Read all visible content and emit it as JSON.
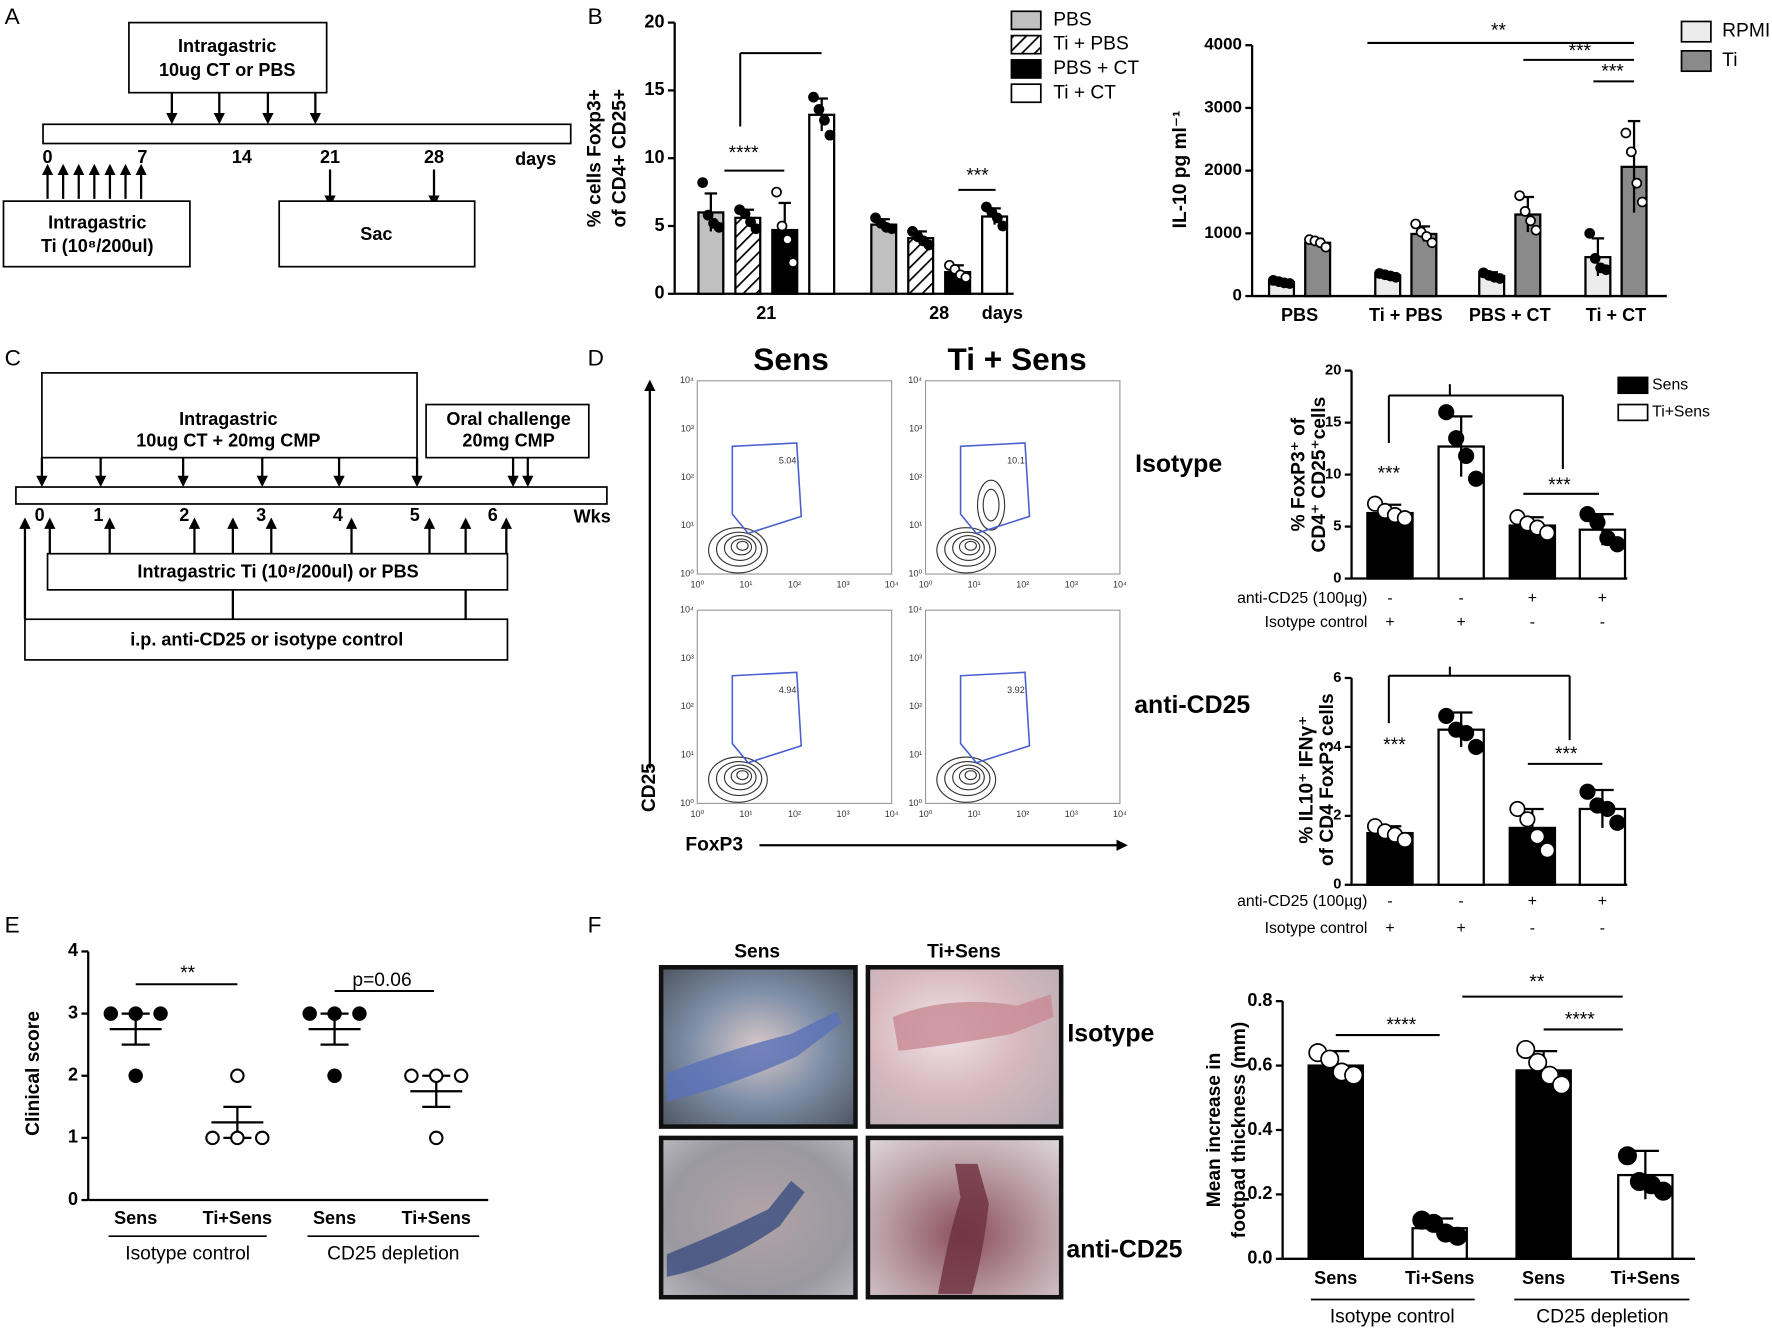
{
  "panel_labels": [
    "A",
    "B",
    "C",
    "D",
    "E",
    "F"
  ],
  "diagrams": {
    "A": {
      "top_box": [
        "Intragastric",
        "10ug CT or PBS"
      ],
      "ticks": [
        "0",
        "7",
        "14",
        "21",
        "28"
      ],
      "unit": "days",
      "bottom_left": [
        "Intragastric",
        "Ti (10⁸/200ul)"
      ],
      "bottom_right": "Sac"
    },
    "C": {
      "box1": [
        "Intragastric",
        "10ug CT + 20mg CMP"
      ],
      "box2": [
        "Oral challenge",
        "20mg CMP"
      ],
      "ticks": [
        "0",
        "1",
        "2",
        "3",
        "4",
        "5",
        "6"
      ],
      "unit": "Wks",
      "box3": "Intragastric Ti (10⁸/200ul) or PBS",
      "box4": "i.p. anti-CD25 or isotype control"
    },
    "D": {
      "columns": [
        "Sens",
        "Ti + Sens"
      ],
      "rows": [
        "Isotype",
        "anti-CD25"
      ],
      "gates": [
        "5.04",
        "10.1",
        "4.94",
        "3.92"
      ],
      "axis_ticks": [
        "10⁰",
        "10¹",
        "10²",
        "10³",
        "10⁴"
      ],
      "ylabel": "CD25",
      "xlabel": "FoxP3"
    },
    "F": {
      "columns": [
        "Sens",
        "Ti+Sens"
      ],
      "rows": [
        "Isotype",
        "anti-CD25"
      ]
    }
  },
  "chart_data": [
    {
      "type": "bar",
      "ylabel": [
        "% cells Foxp3+",
        "of CD4+ CD25+"
      ],
      "categories": [
        "21",
        "28"
      ],
      "xlabel": "days",
      "ylim": [
        0,
        20
      ],
      "yticks": [
        0,
        5,
        10,
        15,
        20
      ],
      "series": [
        {
          "name": "PBS",
          "color": "#c0c0c0",
          "values": [
            6.0,
            5.1
          ],
          "errors": [
            1.4,
            0.4
          ],
          "points": [
            [
              8.2,
              5.8,
              5.2,
              4.9
            ],
            [
              5.6,
              5.2,
              4.9,
              4.8
            ]
          ]
        },
        {
          "name": "Ti + PBS",
          "color": "#ffffff",
          "hatch": true,
          "values": [
            5.6,
            4.1
          ],
          "errors": [
            0.6,
            0.5
          ],
          "points": [
            [
              6.2,
              5.9,
              5.3,
              4.8
            ],
            [
              4.6,
              4.2,
              3.9,
              3.6
            ]
          ]
        },
        {
          "name": "PBS + CT",
          "color": "#000000",
          "values": [
            4.7,
            1.6
          ],
          "errors": [
            2.0,
            0.5
          ],
          "points": [
            [
              7.5,
              5.0,
              4.0,
              2.3
            ],
            [
              2.1,
              1.8,
              1.4,
              1.2
            ]
          ]
        },
        {
          "name": "Ti + CT",
          "color": "#ffffff",
          "values": [
            13.2,
            5.7
          ],
          "errors": [
            1.2,
            0.6
          ],
          "points": [
            [
              14.5,
              13.6,
              12.8,
              11.7
            ],
            [
              6.4,
              6.0,
              5.6,
              5.0
            ]
          ]
        }
      ],
      "annotations": [
        "****",
        "***"
      ]
    },
    {
      "type": "bar",
      "ylabel": "IL-10 pg ml⁻¹",
      "categories": [
        "PBS",
        "Ti + PBS",
        "PBS + CT",
        "Ti + CT"
      ],
      "ylim": [
        0,
        4000
      ],
      "yticks": [
        0,
        1000,
        2000,
        3000,
        4000
      ],
      "series": [
        {
          "name": "RPMI",
          "color": "#ececec",
          "values": [
            220,
            330,
            320,
            620
          ],
          "errors": [
            30,
            30,
            60,
            300
          ],
          "points": [
            [
              250,
              230,
              210,
              200
            ],
            [
              360,
              340,
              320,
              300
            ],
            [
              370,
              330,
              300,
              280
            ],
            [
              1000,
              600,
              450,
              420
            ]
          ]
        },
        {
          "name": "Ti",
          "color": "#8a8a8a",
          "values": [
            850,
            990,
            1300,
            2060
          ],
          "errors": [
            60,
            120,
            280,
            730
          ],
          "points": [
            [
              900,
              880,
              850,
              780
            ],
            [
              1150,
              1020,
              950,
              850
            ],
            [
              1600,
              1350,
              1200,
              1050
            ],
            [
              2600,
              2300,
              1800,
              1500
            ]
          ]
        }
      ],
      "annotations": [
        "**",
        "***",
        "***"
      ]
    },
    {
      "type": "bar",
      "ylabel": [
        "% FoxP3⁺ of",
        "CD4⁺ CD25⁺cells"
      ],
      "ylim": [
        0,
        20
      ],
      "yticks": [
        0,
        5,
        10,
        15,
        20
      ],
      "values": [
        6.3,
        12.7,
        5.1,
        4.7
      ],
      "errors": [
        0.8,
        2.9,
        0.8,
        1.5
      ],
      "colors": [
        "#000000",
        "#ffffff",
        "#000000",
        "#ffffff"
      ],
      "points": [
        [
          7.2,
          6.5,
          6.1,
          5.8
        ],
        [
          16.0,
          13.5,
          11.8,
          9.6
        ],
        [
          5.9,
          5.3,
          4.9,
          4.4
        ],
        [
          6.2,
          5.4,
          3.9,
          3.3
        ]
      ],
      "legend_items": [
        {
          "name": "Sens",
          "color": "#000000"
        },
        {
          "name": "Ti+Sens",
          "color": "#ffffff"
        }
      ],
      "conditions": [
        {
          "label": "anti-CD25 (100µg)",
          "values": [
            "-",
            "-",
            "+",
            "+"
          ]
        },
        {
          "label": "Isotype control",
          "values": [
            "+",
            "+",
            "-",
            "-"
          ]
        }
      ],
      "annotations": [
        "***",
        "***"
      ]
    },
    {
      "type": "bar",
      "ylabel": [
        "% IL10⁺ IFNγ⁺",
        "of CD4 FoxP3 cells"
      ],
      "ylim": [
        0,
        6
      ],
      "yticks": [
        0,
        2,
        4,
        6
      ],
      "values": [
        1.5,
        4.5,
        1.65,
        2.2
      ],
      "errors": [
        0.2,
        0.5,
        0.55,
        0.55
      ],
      "colors": [
        "#000000",
        "#ffffff",
        "#000000",
        "#ffffff"
      ],
      "points": [
        [
          1.7,
          1.55,
          1.45,
          1.3
        ],
        [
          4.9,
          4.5,
          4.4,
          4.0
        ],
        [
          2.2,
          1.9,
          1.4,
          1.0
        ],
        [
          2.7,
          2.3,
          2.2,
          1.8
        ]
      ],
      "conditions": [
        {
          "label": "anti-CD25 (100µg)",
          "values": [
            "-",
            "-",
            "+",
            "+"
          ]
        },
        {
          "label": "Isotype control",
          "values": [
            "+",
            "+",
            "-",
            "-"
          ]
        }
      ],
      "annotations": [
        "***",
        "***"
      ]
    },
    {
      "type": "dot",
      "ylabel": "Clinical score",
      "categories": [
        "Sens",
        "Ti+Sens",
        "Sens",
        "Ti+Sens"
      ],
      "groups": [
        "Isotype control",
        "CD25 depletion"
      ],
      "ylim": [
        0,
        4
      ],
      "yticks": [
        0,
        1,
        2,
        3,
        4
      ],
      "values": [
        2.75,
        1.25,
        2.75,
        1.75
      ],
      "errors": [
        0.25,
        0.25,
        0.25,
        0.25
      ],
      "markers": [
        "filled",
        "open",
        "filled",
        "open"
      ],
      "points": [
        [
          3,
          3,
          3,
          2
        ],
        [
          2,
          1,
          1,
          1
        ],
        [
          3,
          3,
          3,
          2
        ],
        [
          2,
          2,
          2,
          1
        ]
      ],
      "annotations": [
        "**",
        "p=0.06"
      ]
    },
    {
      "type": "bar",
      "ylabel": [
        "Mean increase in",
        "footpad thickness (mm)"
      ],
      "categories": [
        "Sens",
        "Ti+Sens",
        "Sens",
        "Ti+Sens"
      ],
      "groups": [
        "Isotype control",
        "CD25 depletion"
      ],
      "ylim": [
        0,
        0.8
      ],
      "yticks": [
        {
          "value": 0,
          "label": "0.0"
        },
        0.2,
        0.4,
        0.6,
        0.8
      ],
      "values": [
        0.6,
        0.095,
        0.585,
        0.26
      ],
      "errors": [
        0.045,
        0.03,
        0.06,
        0.075
      ],
      "colors": [
        "#000000",
        "#ffffff",
        "#000000",
        "#ffffff"
      ],
      "points": [
        [
          0.64,
          0.62,
          0.58,
          0.57
        ],
        [
          0.12,
          0.11,
          0.08,
          0.07
        ],
        [
          0.65,
          0.61,
          0.57,
          0.54
        ],
        [
          0.32,
          0.24,
          0.23,
          0.21
        ]
      ],
      "annotations": [
        "****",
        "**",
        "****"
      ]
    }
  ]
}
